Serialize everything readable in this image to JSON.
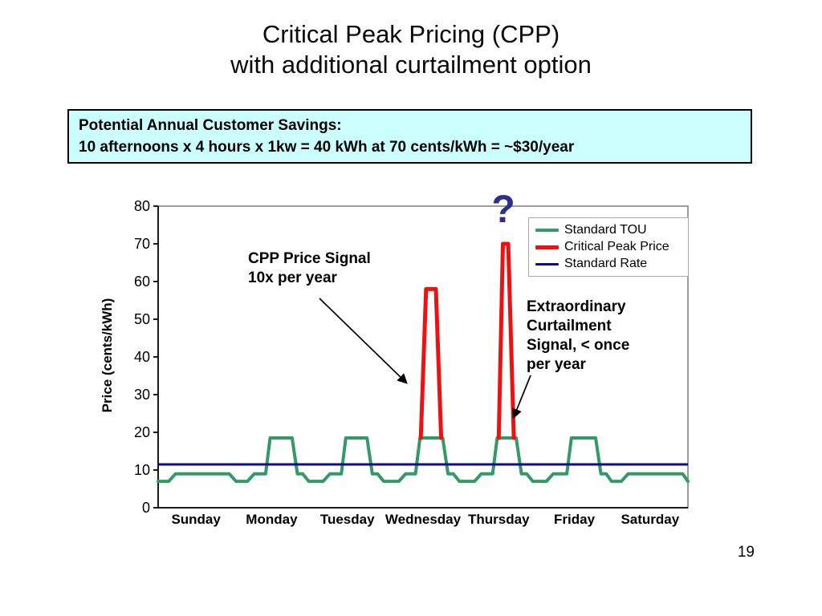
{
  "title": {
    "line1": "Critical Peak Pricing (CPP)",
    "line2": "with additional curtailment option"
  },
  "savings": {
    "line1": "Potential Annual Customer Savings:",
    "line2": "10 afternoons x 4 hours x 1kw = 40 kWh at 70 cents/kWh = ~$30/year"
  },
  "annotations": {
    "cpp_signal": "CPP Price Signal\n10x per year",
    "curtailment_signal": "Extraordinary\nCurtailment\nSignal, < once\nper year",
    "question_mark": "?"
  },
  "page_number": "19",
  "colors": {
    "savings_box_bg": "#ccffff",
    "standard_tou": "#339966",
    "critical_peak": "#ee1111",
    "standard_rate": "#0b0b96",
    "question_mark": "#2b2f8e",
    "plot_frame": "#7a7a7a",
    "axis": "#1a1a1a"
  },
  "chart_data": {
    "type": "line",
    "title": "",
    "xlabel": "",
    "ylabel": "Price (cents/kWh)",
    "ylim": [
      0,
      80
    ],
    "y_ticks": [
      0,
      10,
      20,
      30,
      40,
      50,
      60,
      70,
      80
    ],
    "categories": [
      "Sunday",
      "Monday",
      "Tuesday",
      "Wednesday",
      "Thursday",
      "Friday",
      "Saturday"
    ],
    "grid": false,
    "legend_position": "upper-right-inside",
    "series": [
      {
        "name": "Standard TOU",
        "color": "#339966",
        "width": 4,
        "description": "Stepped daily profile: ~7 c/kWh overnight, ~9 c/kWh daytime shoulder, ~18.5 c/kWh weekday afternoon peak",
        "points": [
          [
            0.0,
            7
          ],
          [
            0.14,
            7
          ],
          [
            0.23,
            9
          ],
          [
            0.94,
            9
          ],
          [
            1.03,
            7
          ],
          [
            1.18,
            7
          ],
          [
            1.27,
            9
          ],
          [
            1.42,
            9
          ],
          [
            1.48,
            18.5
          ],
          [
            1.77,
            18.5
          ],
          [
            1.84,
            9
          ],
          [
            1.91,
            9
          ],
          [
            1.99,
            7
          ],
          [
            2.18,
            7
          ],
          [
            2.27,
            9
          ],
          [
            2.42,
            9
          ],
          [
            2.48,
            18.5
          ],
          [
            2.76,
            18.5
          ],
          [
            2.83,
            9
          ],
          [
            2.9,
            9
          ],
          [
            2.98,
            7
          ],
          [
            3.18,
            7
          ],
          [
            3.27,
            9
          ],
          [
            3.4,
            9
          ],
          [
            3.46,
            18.5
          ],
          [
            3.76,
            18.5
          ],
          [
            3.83,
            9
          ],
          [
            3.9,
            9
          ],
          [
            3.98,
            7
          ],
          [
            4.18,
            7
          ],
          [
            4.27,
            9
          ],
          [
            4.42,
            9
          ],
          [
            4.48,
            18.5
          ],
          [
            4.73,
            18.5
          ],
          [
            4.8,
            9
          ],
          [
            4.87,
            9
          ],
          [
            4.95,
            7
          ],
          [
            5.13,
            7
          ],
          [
            5.22,
            9
          ],
          [
            5.4,
            9
          ],
          [
            5.46,
            18.5
          ],
          [
            5.78,
            18.5
          ],
          [
            5.85,
            9
          ],
          [
            5.92,
            9
          ],
          [
            5.99,
            7
          ],
          [
            6.12,
            7
          ],
          [
            6.21,
            9
          ],
          [
            6.93,
            9
          ],
          [
            7.0,
            7
          ]
        ]
      },
      {
        "name": "Critical Peak Price",
        "color": "#ee1111",
        "width": 5,
        "description": "CPP spike to 58 c/kWh Wednesday afternoon; extraordinary curtailment spike to 70 c/kWh Thursday afternoon",
        "segments": [
          [
            [
              3.47,
              18.5
            ],
            [
              3.54,
              58
            ],
            [
              3.67,
              58
            ],
            [
              3.74,
              18.5
            ]
          ],
          [
            [
              4.5,
              18.5
            ],
            [
              4.555,
              70
            ],
            [
              4.625,
              70
            ],
            [
              4.7,
              18.5
            ]
          ]
        ],
        "peak_values": [
          58,
          70
        ]
      },
      {
        "name": "Standard Rate",
        "color": "#0b0b96",
        "width": 3,
        "description": "Flat rate line",
        "value": 11.5
      }
    ]
  }
}
